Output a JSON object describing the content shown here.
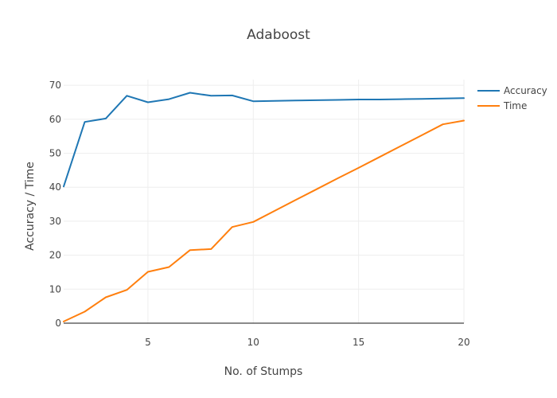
{
  "chart_data": {
    "type": "line",
    "title": "Adaboost",
    "xlabel": "No. of Stumps",
    "ylabel": "Accuracy / Time",
    "xlim": [
      1,
      20
    ],
    "ylim": [
      0,
      72
    ],
    "x_ticks": [
      5,
      10,
      15,
      20
    ],
    "y_ticks": [
      0,
      10,
      20,
      30,
      40,
      50,
      60,
      70
    ],
    "grid": true,
    "legend_position": "top-right",
    "x": [
      1,
      2,
      3,
      4,
      5,
      6,
      7,
      8,
      9,
      10,
      11,
      12,
      13,
      14,
      15,
      16,
      17,
      18,
      19,
      20
    ],
    "series": [
      {
        "name": "Accuracy",
        "color": "#1f77b4",
        "values": [
          40.2,
          59.2,
          60.2,
          66.9,
          65.0,
          65.9,
          67.8,
          66.9,
          67.0,
          65.3,
          65.4,
          65.5,
          65.6,
          65.7,
          65.8,
          65.8,
          65.9,
          66.0,
          66.1,
          66.2
        ]
      },
      {
        "name": "Time",
        "color": "#ff7f0e",
        "values": [
          0.5,
          3.4,
          7.6,
          9.8,
          15.1,
          16.5,
          21.5,
          21.8,
          28.3,
          29.8,
          33.0,
          36.2,
          39.4,
          42.6,
          45.7,
          48.9,
          52.1,
          55.3,
          58.5,
          59.6
        ]
      }
    ]
  }
}
